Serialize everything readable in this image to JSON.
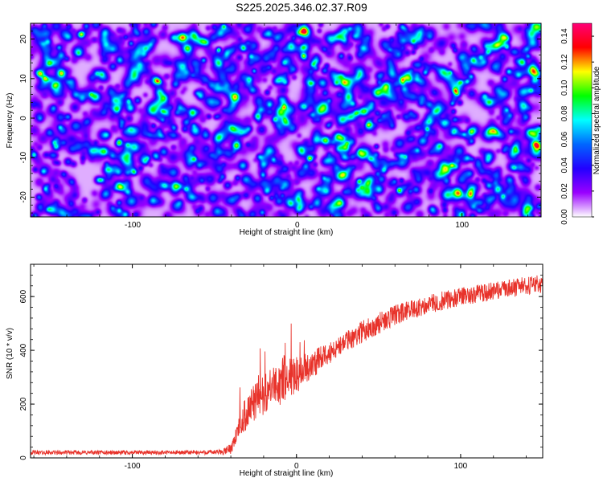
{
  "title": "S225.2025.346.02.37.R09",
  "colors": {
    "line": "#e8332b",
    "frame": "#000000"
  },
  "chart_data": [
    {
      "type": "heatmap",
      "xlabel": "Height of straight line (km)",
      "ylabel": "Frequency (Hz)",
      "xlim": [
        -162,
        148
      ],
      "ylim": [
        -25,
        24
      ],
      "x_ticks": [
        -100,
        0,
        100
      ],
      "x_tick_labels": [
        "-100",
        "0",
        "100"
      ],
      "y_ticks": [
        -20,
        -10,
        0,
        10,
        20
      ],
      "y_tick_labels": [
        "-20",
        "-10",
        "0",
        "10",
        "20"
      ],
      "colorbar": {
        "label": "Normalized spectral amplitude",
        "range": [
          0,
          0.15
        ],
        "ticks": [
          0,
          0.02,
          0.04,
          0.06,
          0.08,
          0.1,
          0.12,
          0.14
        ],
        "tick_labels": [
          "0.00",
          "0.02",
          "0.04",
          "0.06",
          "0.08",
          "0.10",
          "0.12",
          "0.14"
        ],
        "colormap": [
          "#ffffff",
          "#9a00ff",
          "#2200ff",
          "#0066ff",
          "#00ffff",
          "#00ff00",
          "#ffff00",
          "#ff0000",
          "#ff0077"
        ]
      },
      "description_values": {
        "typical_amplitude": 0.02,
        "peak_amplitude": 0.13
      }
    },
    {
      "type": "line",
      "xlabel": "Height of straight line (km)",
      "ylabel": "SNR (10 * v/v)",
      "xlim": [
        -162,
        150
      ],
      "ylim": [
        0,
        720
      ],
      "x_ticks": [
        -100,
        0,
        100
      ],
      "x_tick_labels": [
        "-100",
        "0",
        "100"
      ],
      "y_ticks": [
        0,
        200,
        400,
        600
      ],
      "y_tick_labels": [
        "0",
        "200",
        "400",
        "600"
      ],
      "series": [
        {
          "name": "SNR",
          "x": [
            -162,
            -140,
            -120,
            -100,
            -80,
            -60,
            -45,
            -40,
            -35,
            -30,
            -25,
            -20,
            -15,
            -10,
            -5,
            0,
            5,
            10,
            20,
            30,
            40,
            50,
            60,
            70,
            80,
            90,
            100,
            110,
            120,
            130,
            140,
            150
          ],
          "values": [
            20,
            20,
            20,
            20,
            20,
            20,
            22,
            35,
            110,
            180,
            210,
            240,
            260,
            285,
            300,
            310,
            330,
            350,
            390,
            430,
            470,
            500,
            530,
            550,
            570,
            585,
            600,
            610,
            620,
            630,
            640,
            650
          ],
          "noise": [
            8,
            8,
            8,
            8,
            8,
            8,
            10,
            20,
            40,
            70,
            70,
            80,
            70,
            90,
            90,
            70,
            60,
            55,
            40,
            40,
            40,
            40,
            38,
            38,
            36,
            36,
            34,
            34,
            34,
            34,
            34,
            34
          ]
        }
      ]
    }
  ]
}
